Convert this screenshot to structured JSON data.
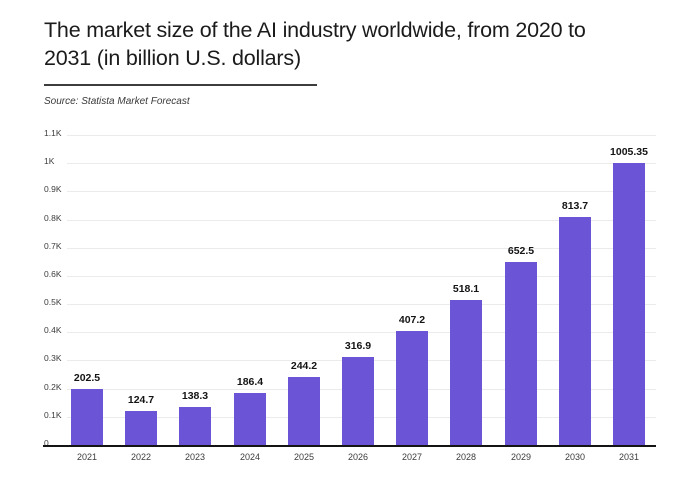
{
  "title": "The market size of the AI industry worldwide, from 2020 to 2031 (in billion U.S. dollars)",
  "source": "Source: Statista Market Forecast",
  "colors": {
    "background": "#ffffff",
    "bar": "#6b54d5",
    "axis_line": "#141414",
    "gridline": "#ebebeb",
    "divider": "#3d3d3d",
    "title_text": "#1b1b1b",
    "source_text": "#3a3a3a",
    "tick_text": "#3c3c3c",
    "value_label_text": "#141414"
  },
  "chart_data": {
    "type": "bar",
    "title": "The market size of the AI industry worldwide, from 2020 to 2031 (in billion U.S. dollars)",
    "xlabel": "",
    "ylabel": "",
    "categories": [
      "2021",
      "2022",
      "2023",
      "2024",
      "2025",
      "2026",
      "2027",
      "2028",
      "2029",
      "2030",
      "2031"
    ],
    "values": [
      202.5,
      124.7,
      138.3,
      186.4,
      244.2,
      316.9,
      407.2,
      518.1,
      652.5,
      813.7,
      1005.35
    ],
    "value_labels": [
      "202.5",
      "124.7",
      "138.3",
      "186.4",
      "244.2",
      "316.9",
      "407.2",
      "518.1",
      "652.5",
      "813.7",
      "1005.35"
    ],
    "ylim": [
      0,
      1100
    ],
    "ytick_values": [
      0,
      100,
      200,
      300,
      400,
      500,
      600,
      700,
      800,
      900,
      1000,
      1100
    ],
    "ytick_labels": [
      "0",
      "0.1K",
      "0.2K",
      "0.3K",
      "0.4K",
      "0.5K",
      "0.6K",
      "0.7K",
      "0.8K",
      "0.9K",
      "1K",
      "1.1K"
    ],
    "grid": "horizontal",
    "legend": "none",
    "bar_color": "#6b54d5"
  }
}
